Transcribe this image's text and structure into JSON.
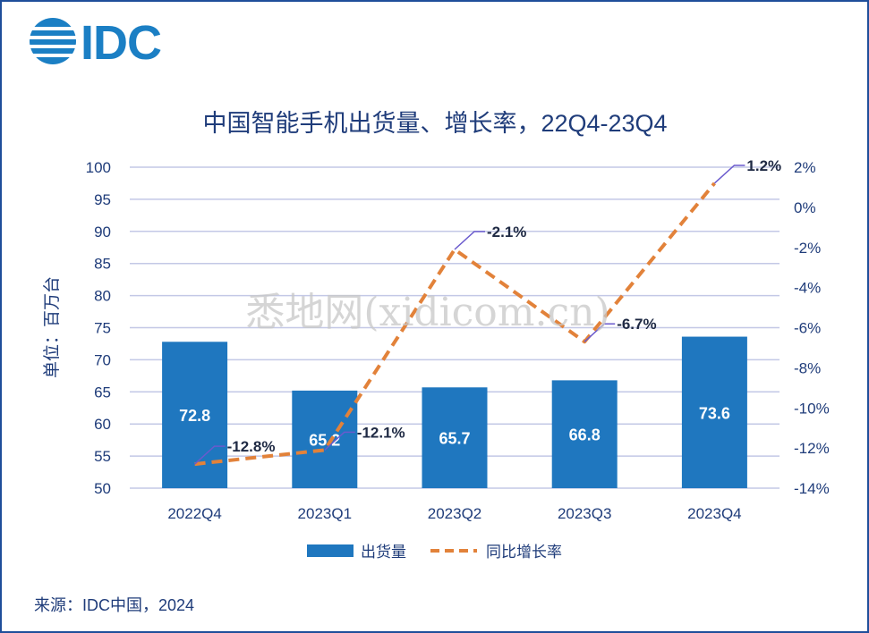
{
  "logo": {
    "text": "IDC"
  },
  "watermark": "悉地网(xidicom.cn)",
  "source": "来源：IDC中国，2024",
  "colors": {
    "bar": "#1f77bf",
    "line": "#e2823a",
    "grid": "#c3c8e6",
    "text": "#1f3c7a",
    "leader": "#6a5acd"
  },
  "chart_data": {
    "type": "bar",
    "title": "中国智能手机出货量、增长率，22Q4-23Q4",
    "categories": [
      "2022Q4",
      "2023Q1",
      "2023Q2",
      "2023Q3",
      "2023Q4"
    ],
    "ylabel": "单位：百万台",
    "ylim": [
      50,
      100
    ],
    "y_ticks": [
      50,
      55,
      60,
      65,
      70,
      75,
      80,
      85,
      90,
      95,
      100
    ],
    "y2lim": [
      -14,
      2
    ],
    "y2_ticks": [
      -14,
      -12,
      -10,
      -8,
      -6,
      -4,
      -2,
      0,
      2
    ],
    "y2_tick_labels": [
      "-14%",
      "-12%",
      "-10%",
      "-8%",
      "-6%",
      "-4%",
      "-2%",
      "0%",
      "2%"
    ],
    "grid": true,
    "legend_position": "bottom",
    "series": [
      {
        "name": "出货量",
        "type": "bar",
        "axis": "left",
        "values": [
          72.8,
          65.2,
          65.7,
          66.8,
          73.6
        ],
        "labels": [
          "72.8",
          "65.2",
          "65.7",
          "66.8",
          "73.6"
        ]
      },
      {
        "name": "同比增长率",
        "type": "line",
        "axis": "right",
        "style": "dashed",
        "values": [
          -12.8,
          -12.1,
          -2.1,
          -6.7,
          1.2
        ],
        "labels": [
          "-12.8%",
          "-12.1%",
          "-2.1%",
          "-6.7%",
          "1.2%"
        ]
      }
    ]
  }
}
